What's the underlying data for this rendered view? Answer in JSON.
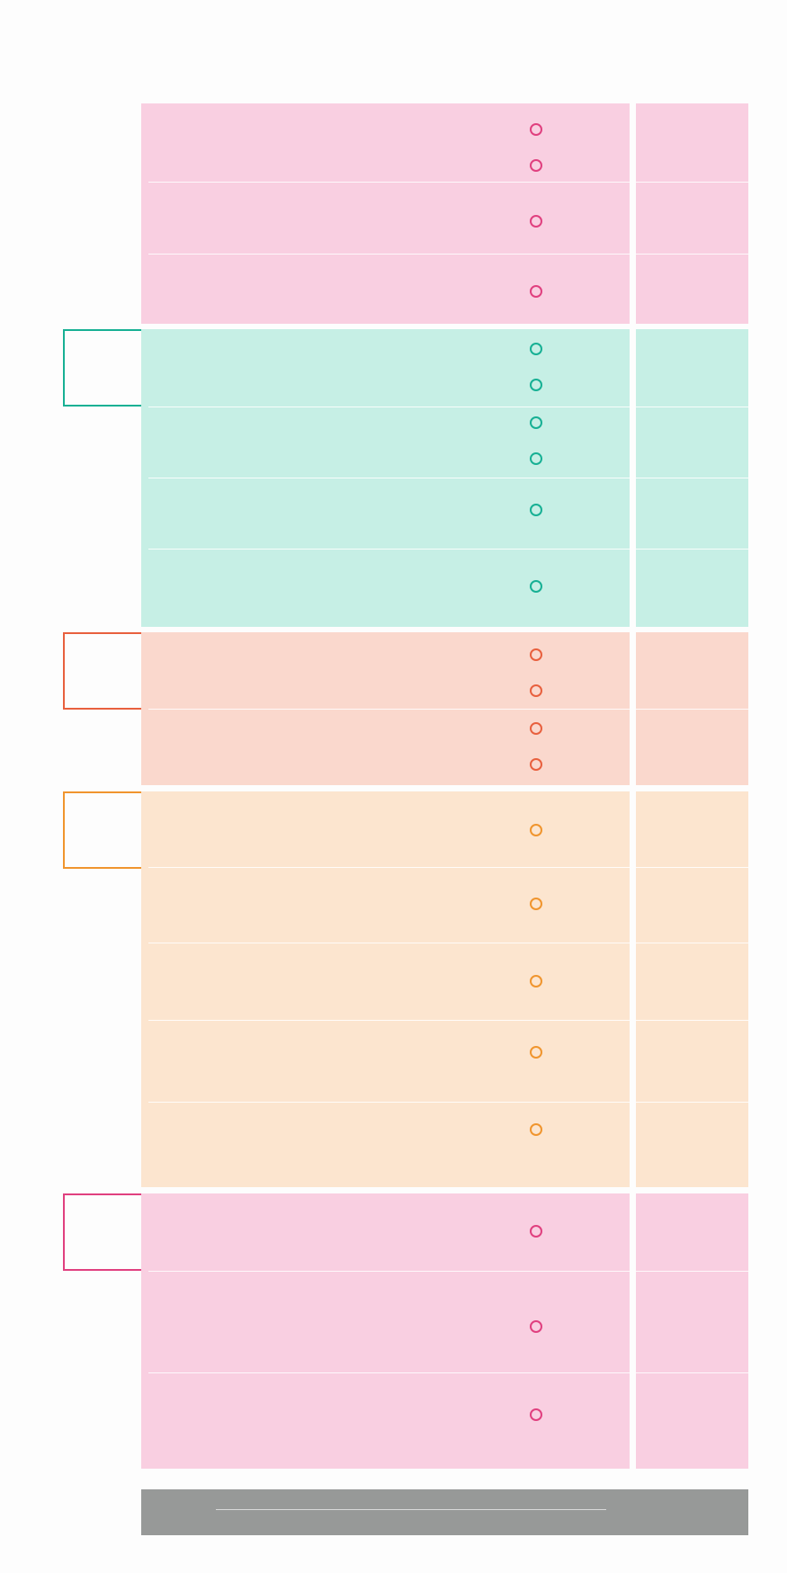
{
  "colors": {
    "pink_fill": "#f9cfe1",
    "pink_accent": "#e0407f",
    "teal_fill": "#c6efe5",
    "teal_accent": "#17b094",
    "coral_fill": "#fad8cd",
    "coral_accent": "#e8603e",
    "orange_fill": "#fce5cf",
    "orange_accent": "#f0952e",
    "footer_fill": "#979998",
    "page_background": "#fdfdfd"
  },
  "sections": [
    {
      "name": "section-1",
      "color": "pink",
      "has_tab": false,
      "rows": 3,
      "checkbox_count": 4
    },
    {
      "name": "section-2",
      "color": "teal",
      "has_tab": true,
      "rows": 4,
      "checkbox_count": 6
    },
    {
      "name": "section-3",
      "color": "coral",
      "has_tab": true,
      "rows": 2,
      "checkbox_count": 4
    },
    {
      "name": "section-4",
      "color": "orange",
      "has_tab": true,
      "rows": 5,
      "checkbox_count": 5
    },
    {
      "name": "section-5",
      "color": "pink",
      "has_tab": true,
      "rows": 3,
      "checkbox_count": 3
    }
  ],
  "icons": {
    "checkbox": "circle-outline-icon",
    "tab": "section-tab-marker"
  }
}
